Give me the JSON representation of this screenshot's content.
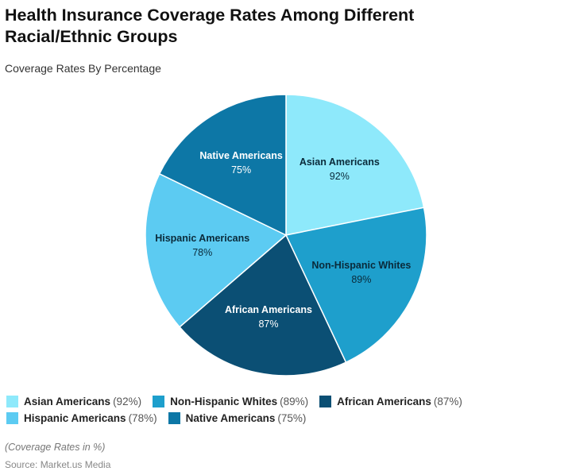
{
  "chart_data": {
    "type": "pie",
    "title": "Health Insurance Coverage Rates Among Different Racial/Ethnic Groups",
    "subtitle": "Coverage Rates By Percentage",
    "categories": [
      "Asian Americans",
      "Non-Hispanic Whites",
      "African Americans",
      "Hispanic Americans",
      "Native Americans"
    ],
    "values": [
      92,
      89,
      87,
      78,
      75
    ],
    "value_labels": [
      "92%",
      "89%",
      "87%",
      "78%",
      "75%"
    ],
    "legend_values": [
      "(92%)",
      "(89%)",
      "(87%)",
      "(78%)",
      "(75%)"
    ],
    "colors": [
      "#8ee9fb",
      "#1e9fcc",
      "#0b4f74",
      "#5ccbf2",
      "#0d77a6"
    ],
    "label_colors": [
      "#0a2a3a",
      "#0a2a3a",
      "#ffffff",
      "#0a2a3a",
      "#ffffff"
    ],
    "legend_placement": "bottom",
    "note": "(Coverage Rates in %)",
    "source": "Source: Market.us Media"
  }
}
